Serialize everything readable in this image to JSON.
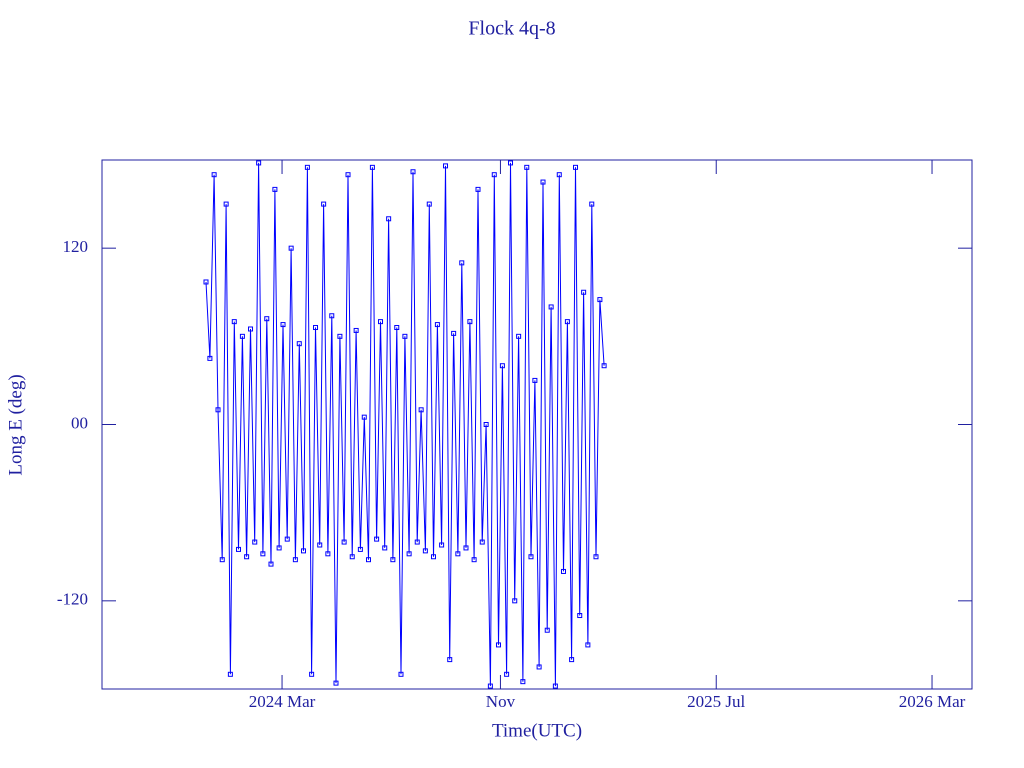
{
  "chart_data": {
    "type": "line",
    "title": "Flock 4q-8",
    "x_label": "Time(UTC)",
    "y_label": "Long E (deg)",
    "color": "#0000ff",
    "xlim": [
      2023.61,
      2026.287
    ],
    "ylim": [
      -180,
      180
    ],
    "xticks": [
      {
        "value": 2024.164,
        "label": "2024 Mar"
      },
      {
        "value": 2024.836,
        "label": "Nov"
      },
      {
        "value": 2025.5,
        "label": "2025 Jul"
      },
      {
        "value": 2026.164,
        "label": "2026 Mar"
      }
    ],
    "yticks": [
      -120,
      {
        "value": 0,
        "label": "00"
      },
      120
    ],
    "x": [
      2023.93,
      2023.942,
      2023.955,
      2023.967,
      2023.98,
      2023.992,
      2024.005,
      2024.017,
      2024.03,
      2024.042,
      2024.055,
      2024.067,
      2024.08,
      2024.092,
      2024.105,
      2024.117,
      2024.13,
      2024.142,
      2024.155,
      2024.167,
      2024.18,
      2024.192,
      2024.205,
      2024.217,
      2024.23,
      2024.242,
      2024.255,
      2024.267,
      2024.28,
      2024.292,
      2024.305,
      2024.317,
      2024.33,
      2024.342,
      2024.355,
      2024.367,
      2024.38,
      2024.392,
      2024.405,
      2024.417,
      2024.43,
      2024.442,
      2024.455,
      2024.467,
      2024.48,
      2024.492,
      2024.505,
      2024.517,
      2024.53,
      2024.542,
      2024.555,
      2024.567,
      2024.58,
      2024.592,
      2024.605,
      2024.617,
      2024.63,
      2024.642,
      2024.655,
      2024.667,
      2024.68,
      2024.692,
      2024.705,
      2024.717,
      2024.73,
      2024.742,
      2024.755,
      2024.767,
      2024.78,
      2024.792,
      2024.805,
      2024.817,
      2024.83,
      2024.842,
      2024.855,
      2024.867,
      2024.88,
      2024.892,
      2024.905,
      2024.917,
      2024.93,
      2024.942,
      2024.955,
      2024.967,
      2024.98,
      2024.992,
      2025.005,
      2025.017,
      2025.03,
      2025.042,
      2025.055,
      2025.067,
      2025.08,
      2025.092,
      2025.105,
      2025.117,
      2025.13,
      2025.142,
      2025.155
    ],
    "values": [
      97,
      45,
      170,
      10,
      -92,
      150,
      -170,
      70,
      -85,
      60,
      -90,
      65,
      -80,
      178,
      -88,
      72,
      -95,
      160,
      -84,
      68,
      -78,
      120,
      -92,
      55,
      -86,
      175,
      -170,
      66,
      -82,
      150,
      -88,
      74,
      -176,
      60,
      -80,
      170,
      -90,
      64,
      -85,
      5,
      -92,
      175,
      -78,
      70,
      -84,
      140,
      -92,
      66,
      -170,
      60,
      -88,
      172,
      -80,
      10,
      -86,
      150,
      -90,
      68,
      -82,
      176,
      -160,
      62,
      -88,
      110,
      -84,
      70,
      -92,
      160,
      -80,
      0,
      -178,
      170,
      -150,
      40,
      -170,
      178,
      -120,
      60,
      -175,
      175,
      -90,
      30,
      -165,
      165,
      -140,
      80,
      -178,
      170,
      -100,
      70,
      -160,
      175,
      -130,
      90,
      -150,
      150,
      -90,
      85,
      40
    ]
  }
}
